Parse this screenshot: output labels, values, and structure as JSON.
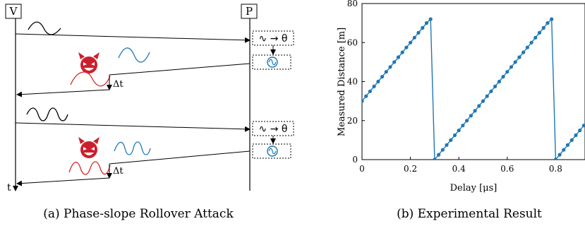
{
  "left_panel": {
    "caption": "(a) Phase-slope Rollover Attack",
    "verifier_label": "V",
    "prover_label": "P",
    "time_label": "t",
    "delta_label": "Δt",
    "phase_box_label": "∿ → θ",
    "colors": {
      "line": "#000000",
      "attacker": "#cc1f2e",
      "replay_wave": "#1f77b4",
      "attack_wave": "#d62728"
    },
    "icons": [
      "devil-icon",
      "signal-generator-icon"
    ]
  },
  "right_panel": {
    "caption": "(b) Experimental Result"
  },
  "chart_data": {
    "type": "line",
    "xlabel": "Delay [μs]",
    "ylabel": "Measured Distance [m]",
    "xlim": [
      0,
      0.95
    ],
    "ylim": [
      0,
      80
    ],
    "xticks": [
      "0",
      "0.2",
      "0.4",
      "0.6",
      "0.8"
    ],
    "yticks": [
      "0",
      "20",
      "40",
      "60",
      "80"
    ],
    "grid": false,
    "marker": "circle",
    "color": "#1f77b4",
    "x": [
      0,
      0.0167,
      0.0333,
      0.05,
      0.0667,
      0.0833,
      0.1,
      0.1167,
      0.1333,
      0.15,
      0.1667,
      0.1833,
      0.2,
      0.2167,
      0.2333,
      0.25,
      0.2667,
      0.2833,
      0.3,
      0.3167,
      0.3333,
      0.35,
      0.3667,
      0.3833,
      0.4,
      0.4167,
      0.4333,
      0.45,
      0.4667,
      0.4833,
      0.5,
      0.5167,
      0.5333,
      0.55,
      0.5667,
      0.5833,
      0.6,
      0.6167,
      0.6333,
      0.65,
      0.6667,
      0.6833,
      0.7,
      0.7167,
      0.7333,
      0.75,
      0.7667,
      0.7833,
      0.8,
      0.8167,
      0.8333,
      0.85,
      0.8667,
      0.8833,
      0.9,
      0.9167,
      0.9333,
      0.95
    ],
    "y": [
      30,
      32.5,
      35,
      37.5,
      40,
      42.5,
      45,
      47.5,
      50,
      52.5,
      55,
      57.5,
      60,
      62.5,
      65,
      67.5,
      70,
      72,
      0,
      2.5,
      5,
      7.5,
      10,
      12.5,
      15,
      17.5,
      20,
      22.5,
      25,
      27.5,
      30,
      32.5,
      35,
      37.5,
      40,
      42.5,
      45,
      47.5,
      50,
      52.5,
      55,
      57.5,
      60,
      62.5,
      65,
      67.5,
      70,
      72,
      0,
      2.5,
      5,
      7.5,
      10,
      12.5,
      15,
      17.5,
      20,
      22.5
    ]
  }
}
